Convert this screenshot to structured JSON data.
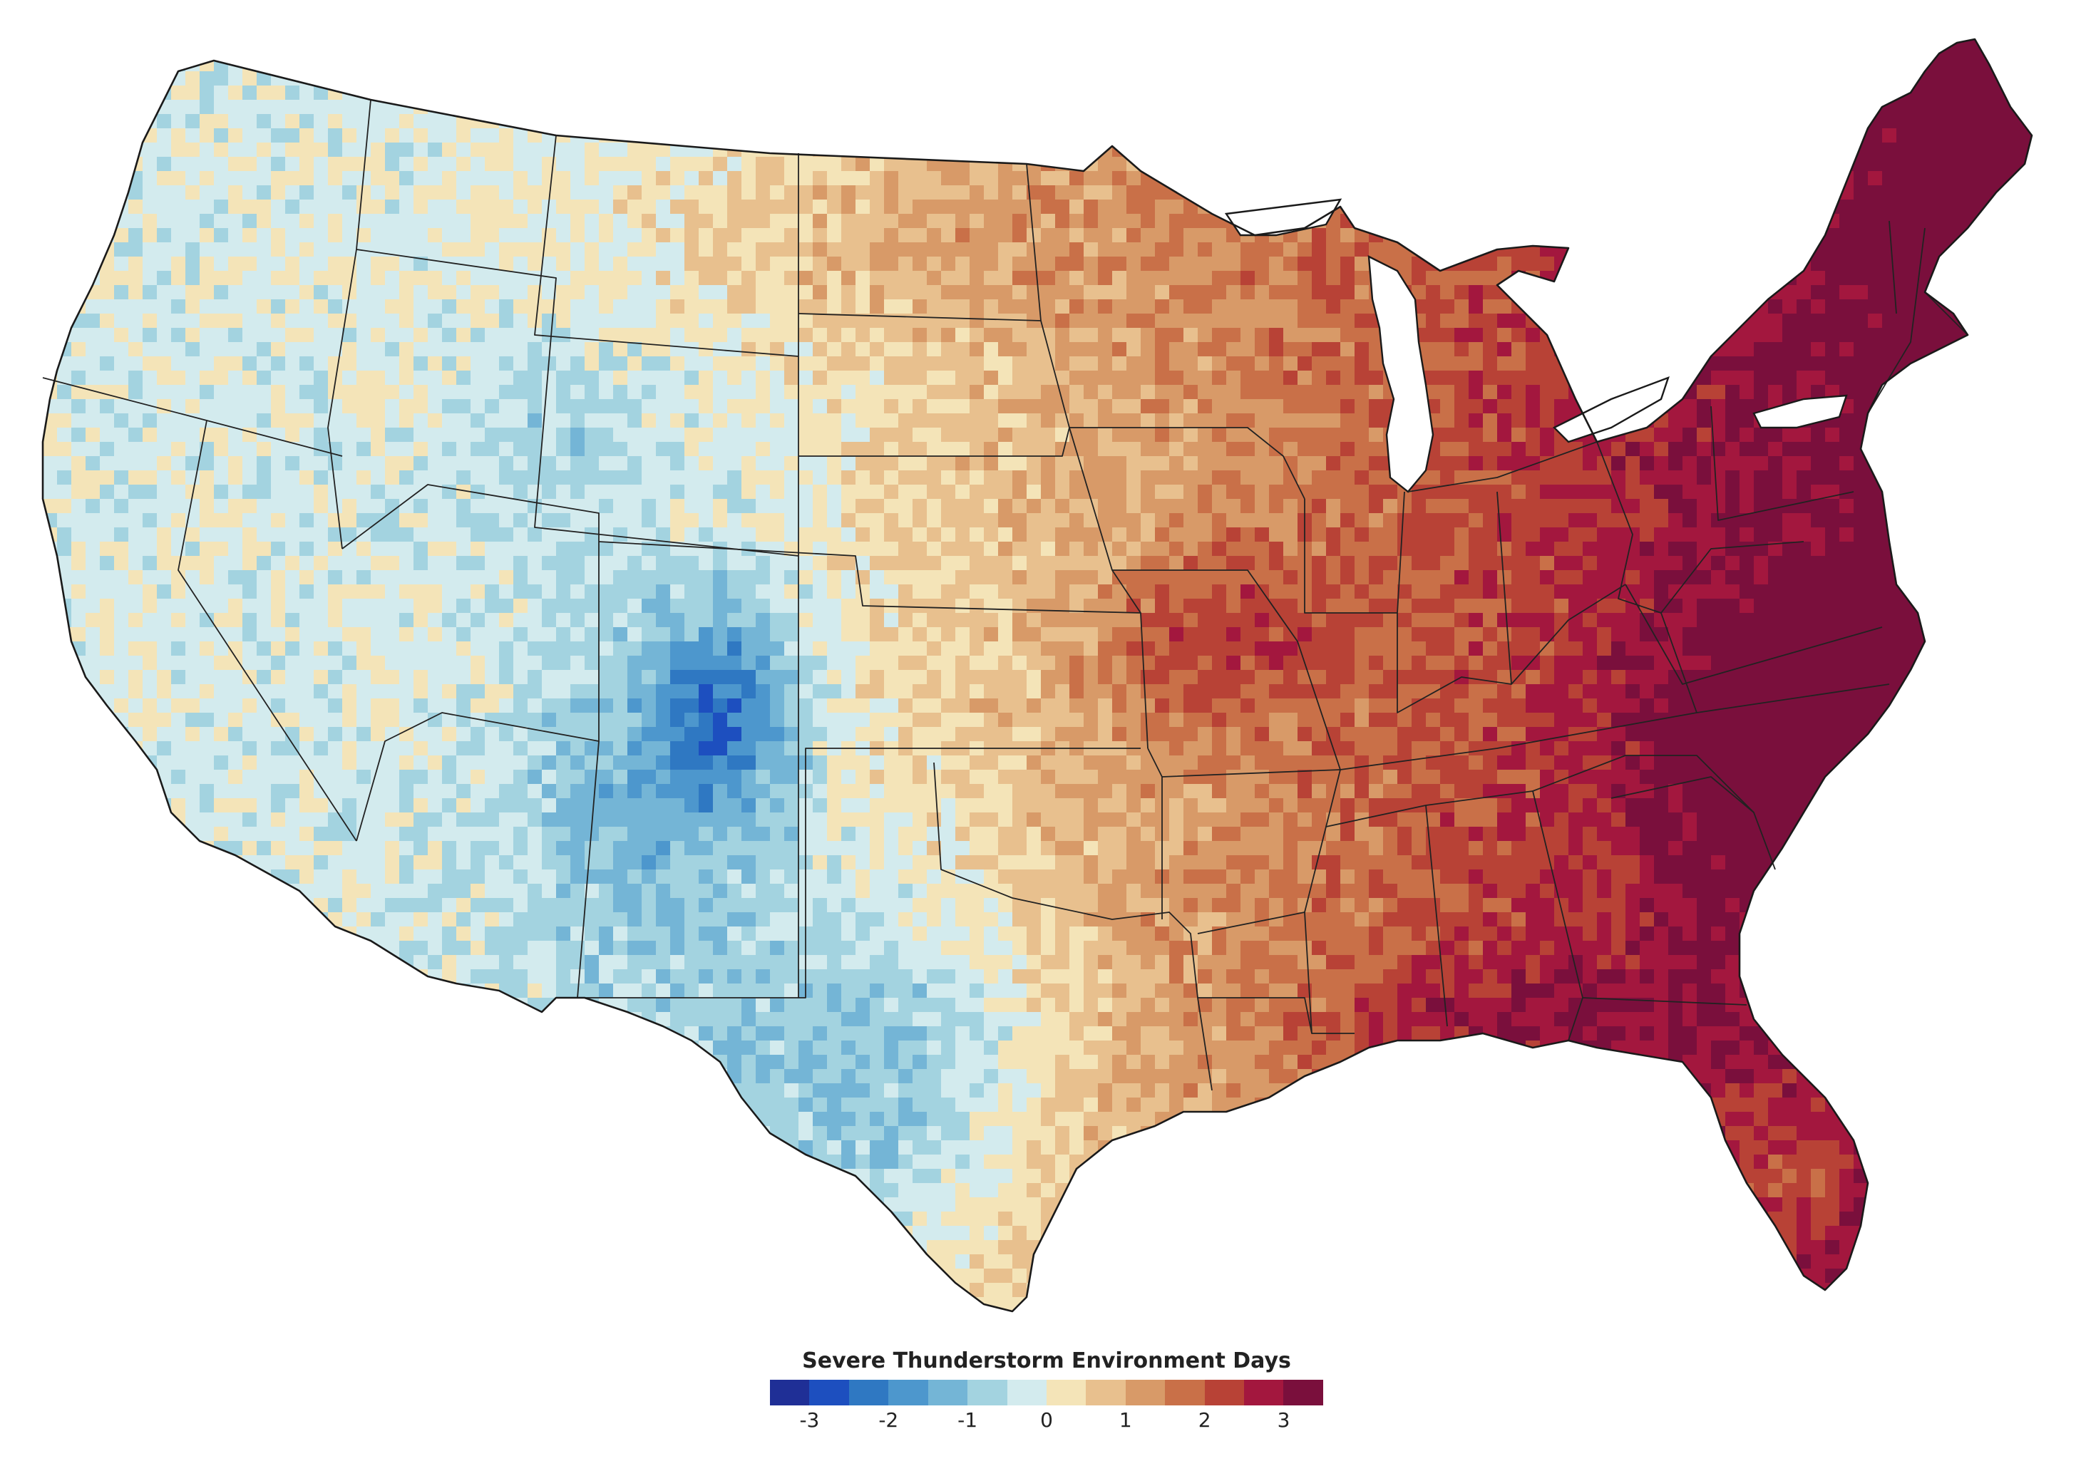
{
  "map": {
    "legend": {
      "title": "Severe Thunderstorm Environment Days",
      "colors": [
        "#1f2f96",
        "#1d4fbf",
        "#2f78c2",
        "#4d97cd",
        "#74b5d6",
        "#a3d3e0",
        "#d3ebee",
        "#f4e4b8",
        "#e8c08e",
        "#d89a68",
        "#c97048",
        "#b84236",
        "#a3173e",
        "#7a0f3c"
      ],
      "ticks": [
        {
          "label": "-3",
          "value": -3
        },
        {
          "label": "-2",
          "value": -2
        },
        {
          "label": "-1",
          "value": -1
        },
        {
          "label": "0",
          "value": 0
        },
        {
          "label": "1",
          "value": 1
        },
        {
          "label": "2",
          "value": 2
        },
        {
          "label": "3",
          "value": 3
        }
      ],
      "range": [
        -3.5,
        3.5
      ]
    }
  }
}
